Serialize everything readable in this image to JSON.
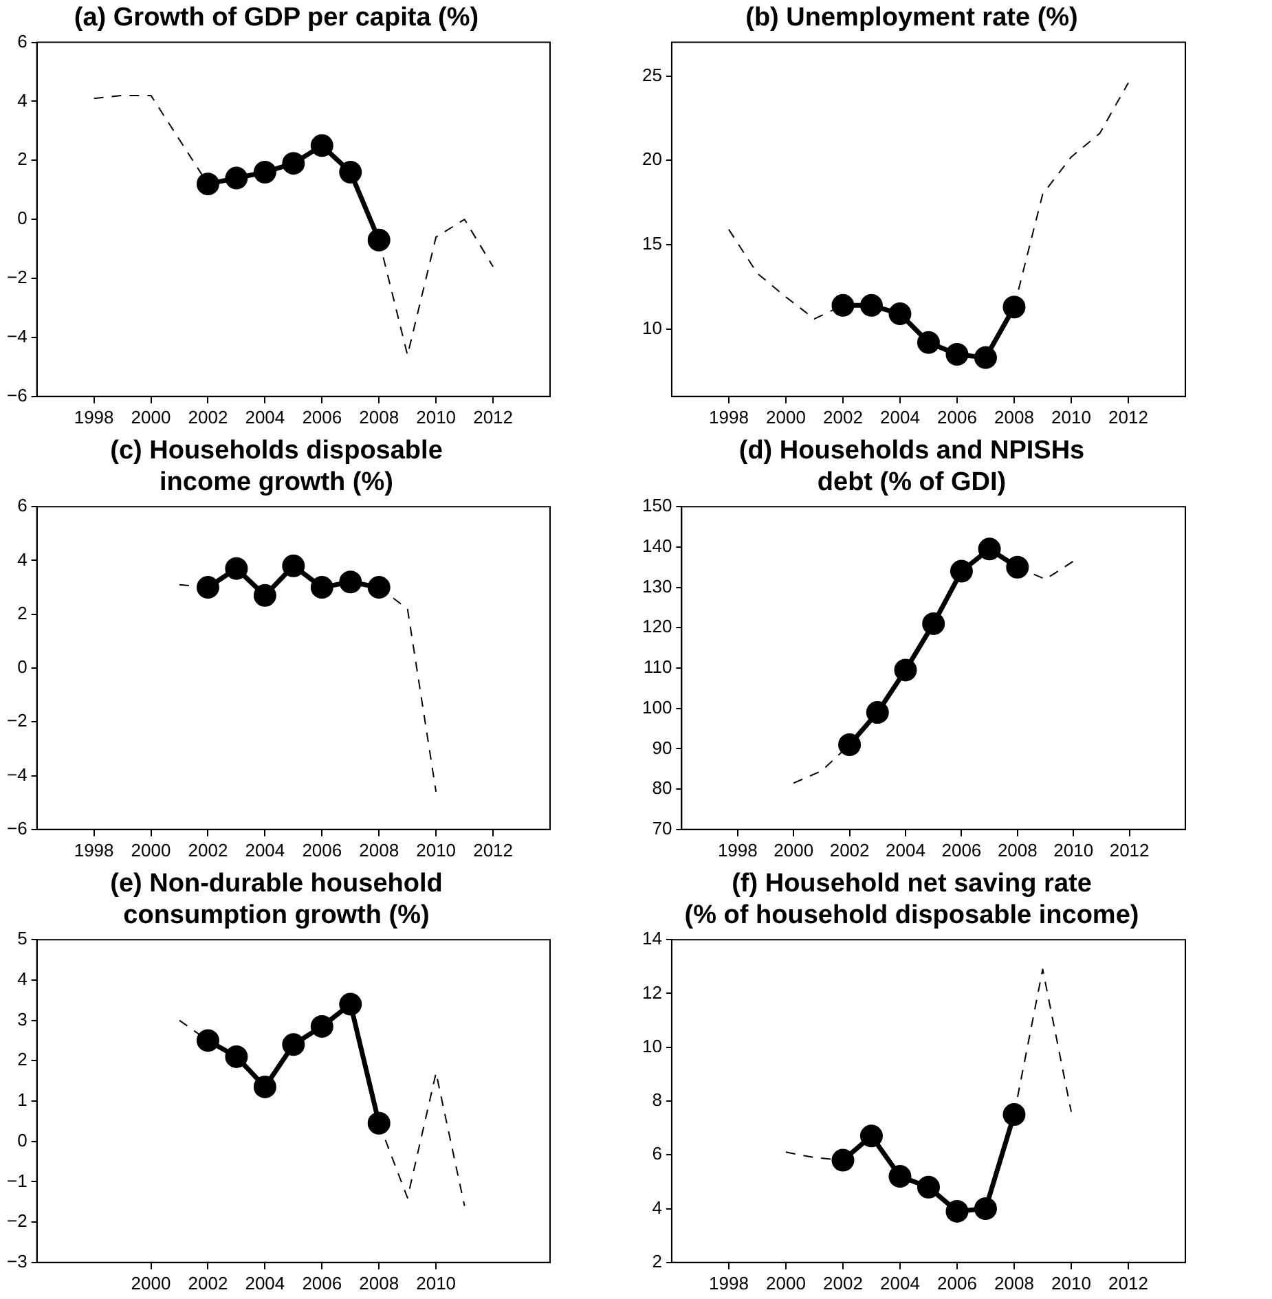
{
  "chart_data": [
    {
      "type": "line",
      "title": "(a) Growth of GDP per capita (%)",
      "xlim": [
        1996,
        2014
      ],
      "xticks": [
        1998,
        2000,
        2002,
        2004,
        2006,
        2008,
        2010,
        2012
      ],
      "ylim": [
        -6,
        6
      ],
      "yticks": [
        -6,
        -4,
        -2,
        0,
        2,
        4,
        6
      ],
      "grid": false,
      "legend": false,
      "series": [
        {
          "color": "#000000",
          "line_style": "dashed",
          "marker": "none",
          "x": [
            1998,
            1999,
            2000,
            2001,
            2002,
            2003,
            2004,
            2005,
            2006,
            2007,
            2008,
            2009,
            2010,
            2011,
            2012
          ],
          "values": [
            4.1,
            4.2,
            4.2,
            2.7,
            1.2,
            null,
            null,
            null,
            null,
            null,
            -0.7,
            -4.6,
            -0.6,
            0,
            -1.6
          ]
        },
        {
          "color": "#000000",
          "line_style": "solid",
          "marker": "circle",
          "x": [
            2002,
            2003,
            2004,
            2005,
            2006,
            2007,
            2008
          ],
          "values": [
            1.2,
            1.4,
            1.6,
            1.9,
            2.5,
            1.6,
            -0.7
          ]
        }
      ]
    },
    {
      "type": "line",
      "title": "(b) Unemployment rate (%)",
      "xlim": [
        1996,
        2014
      ],
      "xticks": [
        1998,
        2000,
        2002,
        2004,
        2006,
        2008,
        2010,
        2012
      ],
      "ylim": [
        6,
        27
      ],
      "yticks": [
        10,
        15,
        20,
        25
      ],
      "grid": false,
      "legend": false,
      "series": [
        {
          "color": "#000000",
          "line_style": "dashed",
          "marker": "none",
          "x": [
            1998,
            1999,
            2000,
            2001,
            2002,
            2003,
            2004,
            2005,
            2006,
            2007,
            2008,
            2009,
            2010,
            2011,
            2012
          ],
          "values": [
            15.9,
            13.3,
            11.9,
            10.6,
            11.4,
            null,
            null,
            null,
            null,
            null,
            11.3,
            18,
            20.2,
            21.6,
            24.6
          ]
        },
        {
          "color": "#000000",
          "line_style": "solid",
          "marker": "circle",
          "x": [
            2002,
            2003,
            2004,
            2005,
            2006,
            2007,
            2008
          ],
          "values": [
            11.4,
            11.4,
            10.9,
            9.2,
            8.5,
            8.3,
            11.3
          ]
        }
      ]
    },
    {
      "type": "line",
      "title": "(c) Households disposable\nincome growth (%)",
      "xlim": [
        1996,
        2014
      ],
      "xticks": [
        1998,
        2000,
        2002,
        2004,
        2006,
        2008,
        2010,
        2012
      ],
      "ylim": [
        -6,
        6
      ],
      "yticks": [
        -6,
        -4,
        -2,
        0,
        2,
        4,
        6
      ],
      "grid": false,
      "legend": false,
      "series": [
        {
          "color": "#000000",
          "line_style": "dashed",
          "marker": "none",
          "x": [
            2001,
            2002,
            2003,
            2004,
            2005,
            2006,
            2007,
            2008,
            2009,
            2010
          ],
          "values": [
            3.1,
            3,
            null,
            null,
            null,
            null,
            null,
            3,
            2.2,
            -4.6
          ]
        },
        {
          "color": "#000000",
          "line_style": "solid",
          "marker": "circle",
          "x": [
            2002,
            2003,
            2004,
            2005,
            2006,
            2007,
            2008
          ],
          "values": [
            3,
            3.7,
            2.7,
            3.8,
            3,
            3.2,
            3
          ]
        }
      ]
    },
    {
      "type": "line",
      "title": "(d) Households and NPISHs\ndebt (% of GDI)",
      "xlim": [
        1996,
        2014
      ],
      "xticks": [
        1998,
        2000,
        2002,
        2004,
        2006,
        2008,
        2010,
        2012
      ],
      "ylim": [
        70,
        150
      ],
      "yticks": [
        70,
        80,
        90,
        100,
        110,
        120,
        130,
        140,
        150
      ],
      "grid": false,
      "legend": false,
      "series": [
        {
          "color": "#000000",
          "line_style": "dashed",
          "marker": "none",
          "x": [
            2000,
            2001,
            2002,
            2003,
            2004,
            2005,
            2006,
            2007,
            2008,
            2009,
            2010
          ],
          "values": [
            81.5,
            84.5,
            91,
            null,
            null,
            null,
            null,
            null,
            135,
            132,
            136.5
          ]
        },
        {
          "color": "#000000",
          "line_style": "solid",
          "marker": "circle",
          "x": [
            2002,
            2003,
            2004,
            2005,
            2006,
            2007,
            2008
          ],
          "values": [
            91,
            99,
            109.5,
            121,
            134,
            139.5,
            135
          ]
        }
      ]
    },
    {
      "type": "line",
      "title": "(e) Non-durable household\nconsumption growth (%)",
      "xlim": [
        1996,
        2014
      ],
      "xticks": [
        2000,
        2002,
        2004,
        2006,
        2008,
        2010
      ],
      "ylim": [
        -3,
        5
      ],
      "yticks": [
        -3,
        -2,
        -1,
        0,
        1,
        2,
        3,
        4,
        5
      ],
      "grid": false,
      "legend": false,
      "series": [
        {
          "color": "#000000",
          "line_style": "dashed",
          "marker": "none",
          "x": [
            2001,
            2002,
            2003,
            2004,
            2005,
            2006,
            2007,
            2008,
            2009,
            2010,
            2011
          ],
          "values": [
            3,
            2.5,
            null,
            null,
            null,
            null,
            null,
            0.45,
            -1.4,
            1.7,
            -1.6
          ]
        },
        {
          "color": "#000000",
          "line_style": "solid",
          "marker": "circle",
          "x": [
            2002,
            2003,
            2004,
            2005,
            2006,
            2007,
            2008
          ],
          "values": [
            2.5,
            2.1,
            1.35,
            2.4,
            2.85,
            3.4,
            0.45
          ]
        }
      ]
    },
    {
      "type": "line",
      "title": "(f) Household net saving rate\n(% of household disposable income)",
      "xlim": [
        1996,
        2014
      ],
      "xticks": [
        1998,
        2000,
        2002,
        2004,
        2006,
        2008,
        2010,
        2012
      ],
      "ylim": [
        2,
        14
      ],
      "yticks": [
        2,
        4,
        6,
        8,
        10,
        12,
        14
      ],
      "grid": false,
      "legend": false,
      "series": [
        {
          "color": "#000000",
          "line_style": "dashed",
          "marker": "none",
          "x": [
            2000,
            2001,
            2002,
            2003,
            2004,
            2005,
            2006,
            2007,
            2008,
            2009,
            2010
          ],
          "values": [
            6.1,
            5.9,
            5.8,
            null,
            null,
            null,
            null,
            null,
            7.5,
            12.9,
            7.6
          ]
        },
        {
          "color": "#000000",
          "line_style": "solid",
          "marker": "circle",
          "x": [
            2002,
            2003,
            2004,
            2005,
            2006,
            2007,
            2008
          ],
          "values": [
            5.8,
            6.7,
            5.2,
            4.8,
            3.9,
            4,
            7.5
          ]
        }
      ]
    }
  ]
}
